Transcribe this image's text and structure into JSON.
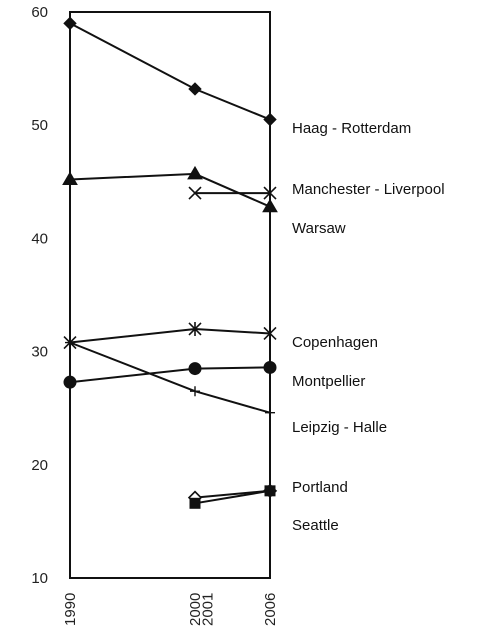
{
  "chart_data": {
    "type": "line",
    "xlabel": "",
    "ylabel": "",
    "ylim": [
      10,
      60
    ],
    "xlim": [
      1990,
      2006
    ],
    "yticks": [
      10,
      20,
      30,
      40,
      50,
      60
    ],
    "xticks": [
      {
        "value": 1990,
        "label": "1990"
      },
      {
        "value": 2000,
        "label": "2000"
      },
      {
        "value": 2001,
        "label": "2001"
      },
      {
        "value": 2006,
        "label": "2006"
      }
    ],
    "grid": false,
    "series": [
      {
        "name": "Haag  - Rotterdam",
        "marker": "diamond-filled",
        "points": [
          [
            1990,
            59.0
          ],
          [
            2000,
            53.2
          ],
          [
            2006,
            50.5
          ]
        ]
      },
      {
        "name": "Manchester   - Liverpool",
        "marker": "x",
        "points": [
          [
            2000,
            44.0
          ],
          [
            2006,
            44.0
          ]
        ]
      },
      {
        "name": "Warsaw",
        "marker": "triangle-filled",
        "points": [
          [
            1990,
            45.2
          ],
          [
            2000,
            45.7
          ],
          [
            2006,
            42.8
          ]
        ]
      },
      {
        "name": "Copenhagen",
        "marker": "star",
        "points": [
          [
            1990,
            30.8
          ],
          [
            2000,
            32.0
          ],
          [
            2006,
            31.6
          ]
        ]
      },
      {
        "name": "Montpellier",
        "marker": "circle-filled",
        "points": [
          [
            1990,
            27.3
          ],
          [
            2000,
            28.5
          ],
          [
            2006,
            28.6
          ]
        ]
      },
      {
        "name": "Leipzig - Halle",
        "marker": "plus",
        "points": [
          [
            1990,
            30.8
          ],
          [
            2000,
            26.5
          ],
          [
            2006,
            24.6
          ]
        ]
      },
      {
        "name": "Portland",
        "marker": "diamond-open",
        "points": [
          [
            2000,
            17.1
          ],
          [
            2006,
            17.7
          ]
        ]
      },
      {
        "name": "Seattle",
        "marker": "square-filled",
        "points": [
          [
            2000,
            16.6
          ],
          [
            2006,
            17.7
          ]
        ]
      }
    ]
  }
}
